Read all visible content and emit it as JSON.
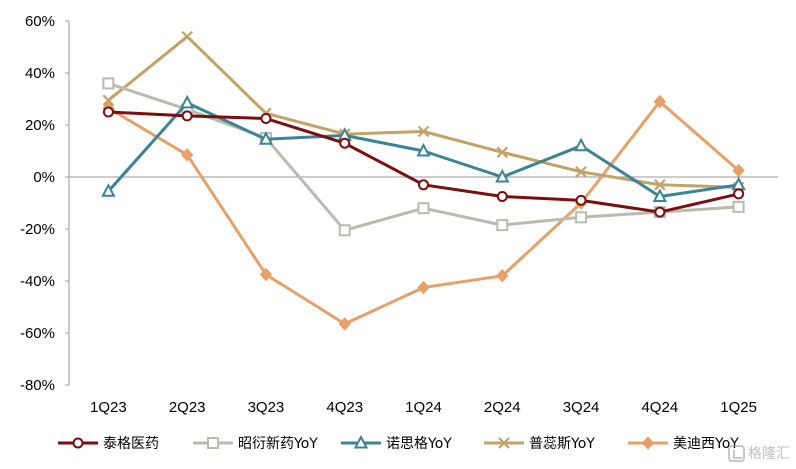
{
  "chart_data": {
    "type": "line",
    "categories": [
      "1Q23",
      "2Q23",
      "3Q23",
      "4Q23",
      "1Q24",
      "2Q24",
      "3Q24",
      "4Q24",
      "1Q25"
    ],
    "ylim": [
      -80,
      60
    ],
    "yticks": [
      -80,
      -60,
      -40,
      -20,
      0,
      20,
      40,
      60
    ],
    "ytick_labels": [
      "-80%",
      "-60%",
      "-40%",
      "-20%",
      "0%",
      "20%",
      "40%",
      "60%"
    ],
    "grid": false,
    "legend_position": "bottom",
    "series": [
      {
        "name": "泰格医药",
        "color": "#7a0f0f",
        "marker": "circle",
        "values": [
          25,
          23.5,
          22.5,
          13,
          -3,
          -7.5,
          -9,
          -13.5,
          -6.5
        ]
      },
      {
        "name": "昭衍新药YoY",
        "color": "#b8bbae",
        "marker": "square",
        "values": [
          36,
          26,
          15,
          -20.5,
          -12,
          -18.5,
          -15.5,
          -13.5,
          -11.5
        ]
      },
      {
        "name": "诺思格YoY",
        "color": "#3c8494",
        "marker": "triangle",
        "values": [
          -5.5,
          28.5,
          14.5,
          16,
          10,
          0,
          12,
          -7.5,
          -3
        ]
      },
      {
        "name": "普蕊斯YoY",
        "color": "#c4a265",
        "marker": "cross",
        "values": [
          29.5,
          54,
          24.5,
          16.5,
          17.5,
          9.5,
          2,
          -3,
          -4
        ]
      },
      {
        "name": "美迪西YoY",
        "color": "#e6a06a",
        "marker": "diamond",
        "values": [
          26.5,
          8.5,
          -37.5,
          -56.5,
          -42.5,
          -38,
          -10,
          29,
          2.5
        ]
      }
    ]
  },
  "watermark": {
    "text": "格隆汇"
  }
}
